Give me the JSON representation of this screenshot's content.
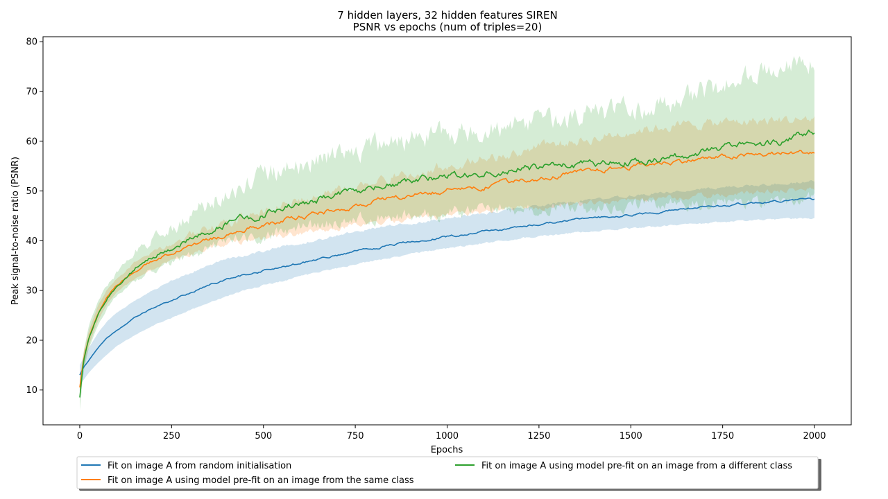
{
  "chart_data": {
    "type": "line",
    "title": "7 hidden layers, 32 hidden features SIREN",
    "subtitle": "PSNR vs epochs (num of triples=20)",
    "xlabel": "Epochs",
    "ylabel": "Peak signal-to-noise ratio (PSNR)",
    "xlim": [
      -100,
      2100
    ],
    "ylim": [
      3,
      81
    ],
    "x_ticks": [
      0,
      250,
      500,
      750,
      1000,
      1250,
      1500,
      1750,
      2000
    ],
    "y_ticks": [
      10,
      20,
      30,
      40,
      50,
      60,
      70,
      80
    ],
    "legend_position": "bottom-center",
    "grid": false,
    "x": [
      0,
      10,
      25,
      50,
      75,
      100,
      150,
      200,
      250,
      300,
      350,
      400,
      500,
      600,
      700,
      800,
      900,
      1000,
      1100,
      1200,
      1300,
      1400,
      1500,
      1600,
      1700,
      1800,
      1900,
      2000
    ],
    "series": [
      {
        "name": "Fit on image A from random initialisation",
        "color": "#1f77b4",
        "values": [
          13,
          14.5,
          16,
          18.5,
          20.5,
          22,
          24.5,
          26.5,
          28,
          29.5,
          31,
          32.2,
          34,
          35.5,
          37,
          38.5,
          39.8,
          40.8,
          41.8,
          42.8,
          43.8,
          44.6,
          45.2,
          46,
          46.7,
          47.4,
          48,
          48.4
        ],
        "lower": [
          11,
          12,
          13.5,
          15.5,
          17.2,
          18.8,
          21,
          23,
          24.5,
          26,
          27.5,
          29,
          31,
          32.8,
          34.5,
          36,
          37.3,
          38.5,
          39.5,
          40.5,
          41.3,
          42,
          42.5,
          43,
          43.5,
          44,
          44.3,
          44.5
        ],
        "upper": [
          15,
          16.5,
          18.5,
          21.5,
          23.8,
          25.5,
          28,
          30,
          32,
          33.5,
          35,
          36.2,
          38,
          39.5,
          41,
          42.5,
          43.5,
          44.5,
          45.5,
          46.5,
          47.5,
          48.2,
          49,
          49.8,
          50.5,
          51,
          51.5,
          52
        ]
      },
      {
        "name": "Fit on image A using model pre-fit on an image from the same class",
        "color": "#ff7f0e",
        "values": [
          10.5,
          16,
          20.5,
          25.5,
          28.8,
          31,
          34,
          36,
          37.5,
          39,
          40.2,
          41.2,
          43.2,
          44.8,
          46.2,
          47.8,
          49,
          50.2,
          51,
          52.2,
          53,
          54,
          55,
          55.8,
          56.5,
          57,
          57.5,
          57.8
        ],
        "lower": [
          9,
          14.5,
          19,
          24,
          27.3,
          29.5,
          32.5,
          34.5,
          36,
          37.3,
          38.5,
          39.5,
          40.5,
          41.5,
          42.5,
          43.5,
          44.3,
          45,
          45.8,
          46.5,
          47,
          47.5,
          48,
          48.5,
          49,
          49.5,
          50,
          50.5
        ],
        "upper": [
          12,
          17.5,
          22,
          27,
          30.3,
          32.5,
          35.5,
          37.5,
          39.5,
          41,
          42.5,
          43.5,
          46,
          48,
          50,
          52,
          53.5,
          55,
          56.5,
          58,
          59.5,
          60.5,
          62,
          63,
          63.5,
          64,
          64.2,
          64.5
        ]
      },
      {
        "name": "Fit on image A using model pre-fit on an image from a different class",
        "color": "#2ca02c",
        "values": [
          8.5,
          15.5,
          20.5,
          25.2,
          28.5,
          31,
          34.5,
          36.8,
          38.5,
          40.5,
          42,
          43.5,
          45.5,
          47.5,
          49,
          50.5,
          52,
          53,
          53.8,
          54.5,
          55,
          55.5,
          56,
          56.5,
          58,
          59,
          60,
          62
        ],
        "lower": [
          6,
          13.5,
          18.5,
          23,
          26.5,
          29,
          32,
          34,
          35.5,
          37,
          38.5,
          39.5,
          41,
          42.5,
          43.5,
          44.5,
          45,
          45.5,
          46,
          46.3,
          46.5,
          46.8,
          47,
          47.3,
          47.5,
          47.8,
          48,
          48.2
        ],
        "upper": [
          11,
          17.5,
          23,
          28,
          31,
          33.5,
          37.5,
          40.5,
          42.5,
          45,
          47.5,
          50,
          53,
          55.5,
          57.5,
          59,
          60.5,
          61.5,
          62.5,
          63.5,
          64.5,
          65.5,
          66.5,
          67.5,
          70,
          72.5,
          74.5,
          76.5
        ]
      }
    ]
  }
}
